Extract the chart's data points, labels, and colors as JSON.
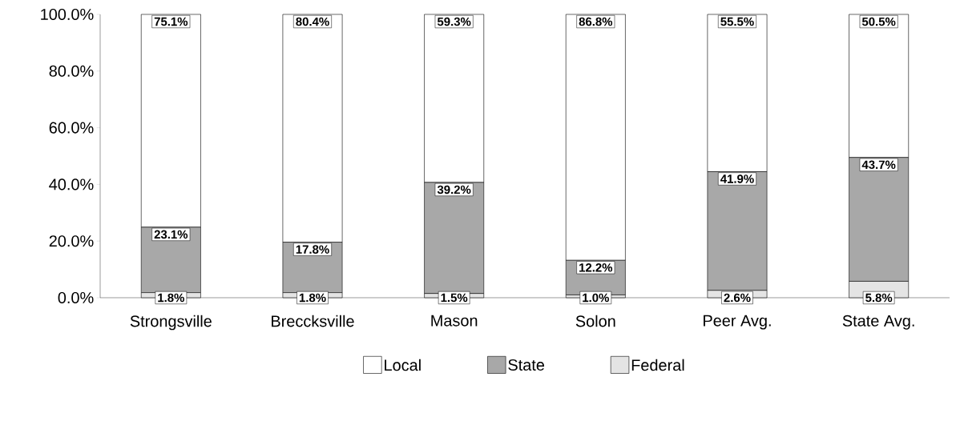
{
  "chart_data": {
    "type": "bar",
    "stacked": true,
    "categories": [
      "Strongsville",
      "Breccksville",
      "Mason",
      "Solon",
      "Peer Avg.",
      "State Avg."
    ],
    "series": [
      {
        "name": "Federal",
        "color": "#e4e4e4",
        "values": [
          1.8,
          1.8,
          1.5,
          1.0,
          2.6,
          5.8
        ],
        "value_labels": [
          "1.8%",
          "1.8%",
          "1.5%",
          "1.0%",
          "2.6%",
          "5.8%"
        ]
      },
      {
        "name": "State",
        "color": "#a8a8a8",
        "values": [
          23.1,
          17.8,
          39.2,
          12.2,
          41.9,
          43.7
        ],
        "value_labels": [
          "23.1%",
          "17.8%",
          "39.2%",
          "12.2%",
          "41.9%",
          "43.7%"
        ]
      },
      {
        "name": "Local",
        "color": "#ffffff",
        "values": [
          75.1,
          80.4,
          59.3,
          86.8,
          55.5,
          50.5
        ],
        "value_labels": [
          "75.1%",
          "80.4%",
          "59.3%",
          "86.8%",
          "55.5%",
          "50.5%"
        ]
      }
    ],
    "ylim": [
      0,
      100
    ],
    "yticks": [
      {
        "value": 0,
        "label": "0.0%"
      },
      {
        "value": 20,
        "label": "20.0%"
      },
      {
        "value": 40,
        "label": "40.0%"
      },
      {
        "value": 60,
        "label": "60.0%"
      },
      {
        "value": 80,
        "label": "80.0%"
      },
      {
        "value": 100,
        "label": "100.0%"
      }
    ],
    "legend": "bottom"
  }
}
